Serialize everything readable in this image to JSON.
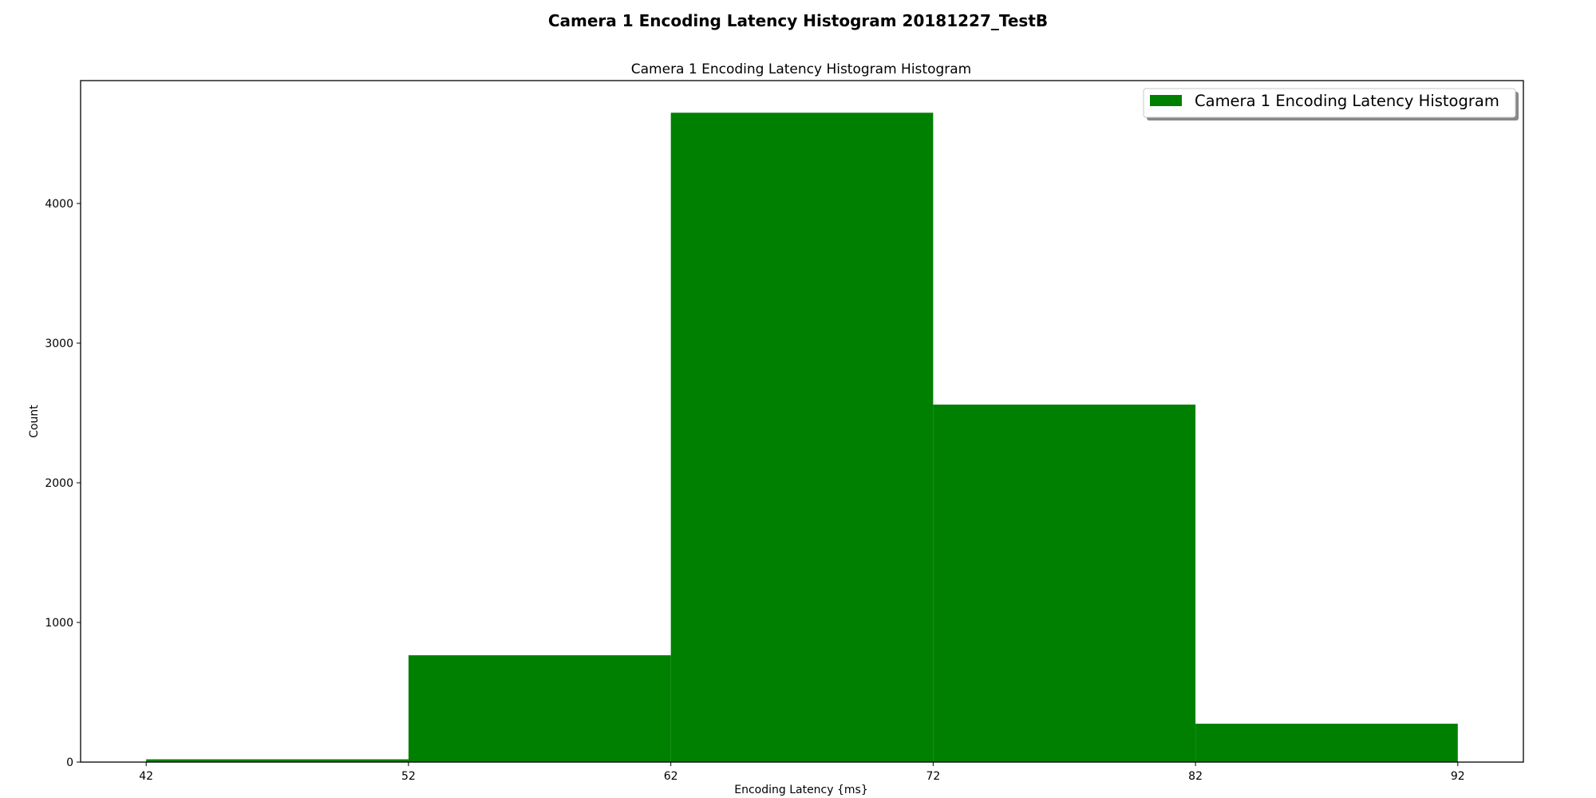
{
  "figure": {
    "suptitle": "Camera 1 Encoding Latency Histogram 20181227_TestB"
  },
  "chart_data": {
    "type": "bar",
    "title": "Camera 1 Encoding Latency Histogram Histogram",
    "xlabel": "Encoding Latency {ms}",
    "ylabel": "Count",
    "bins": [
      {
        "from": 42,
        "to": 52,
        "count": 20
      },
      {
        "from": 52,
        "to": 62,
        "count": 765
      },
      {
        "from": 62,
        "to": 72,
        "count": 4650
      },
      {
        "from": 72,
        "to": 82,
        "count": 2560
      },
      {
        "from": 82,
        "to": 92,
        "count": 275
      }
    ],
    "xlim": [
      39.5,
      94.5
    ],
    "ylim": [
      0,
      4880
    ],
    "xticks": [
      42,
      52,
      62,
      72,
      82,
      92
    ],
    "yticks": [
      0,
      1000,
      2000,
      3000,
      4000
    ],
    "bar_color": "#008000",
    "grid": false,
    "legend": {
      "label": "Camera 1 Encoding Latency Histogram",
      "placement": "top-right"
    }
  }
}
